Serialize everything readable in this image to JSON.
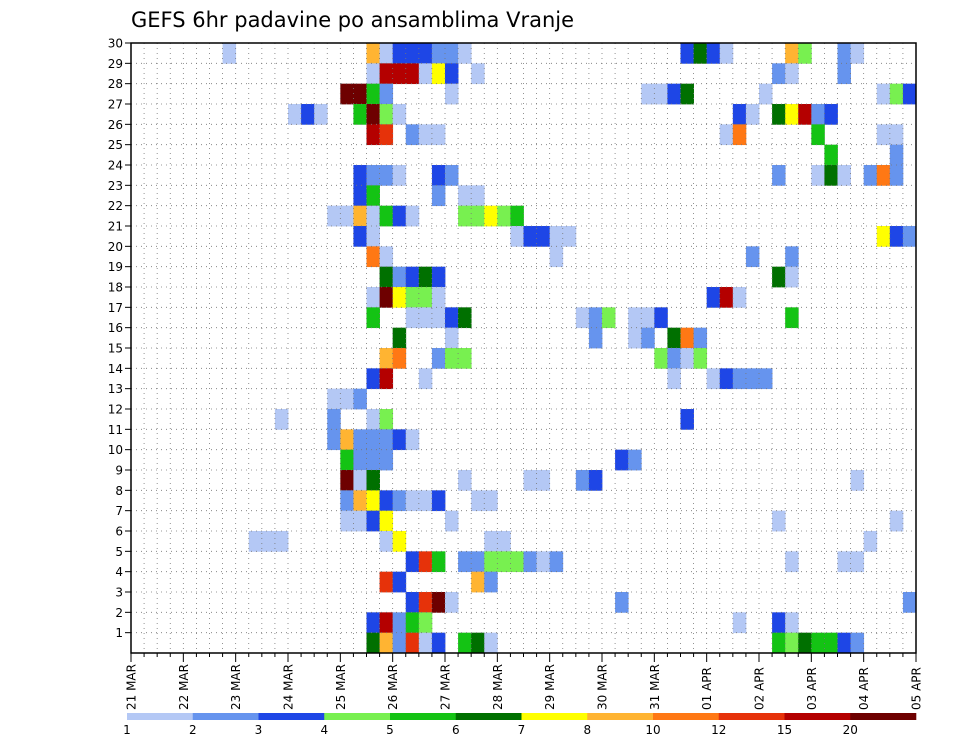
{
  "chart_data": {
    "type": "heatmap",
    "title": "GEFS 6hr padavine po ansamblima Vranje",
    "xlabel": "",
    "ylabel": "",
    "y_labels": [
      "1",
      "2",
      "3",
      "4",
      "5",
      "6",
      "7",
      "8",
      "9",
      "10",
      "11",
      "12",
      "13",
      "14",
      "15",
      "16",
      "17",
      "18",
      "19",
      "20",
      "21",
      "22",
      "23",
      "24",
      "25",
      "26",
      "27",
      "28",
      "29",
      "30"
    ],
    "x_labels": [
      "21 MAR",
      "22 MAR",
      "23 MAR",
      "24 MAR",
      "25 MAR",
      "26 MAR",
      "27 MAR",
      "28 MAR",
      "29 MAR",
      "30 MAR",
      "31 MAR",
      "01 APR",
      "02 APR",
      "03 APR",
      "04 APR",
      "05 APR"
    ],
    "ylim": [
      0,
      30
    ],
    "grid": true,
    "time_steps": 60,
    "legend": {
      "levels": [
        "1",
        "2",
        "3",
        "4",
        "5",
        "6",
        "7",
        "8",
        "10",
        "12",
        "15",
        "20"
      ],
      "colors": [
        "#b4c8f5",
        "#6694ee",
        "#1e46e6",
        "#78f050",
        "#14c314",
        "#007000",
        "#ffff00",
        "#ffb432",
        "#ff7814",
        "#e6320a",
        "#b40000",
        "#6e0000"
      ]
    },
    "cells": [
      [
        30,
        8,
        1
      ],
      [
        30,
        19,
        8
      ],
      [
        30,
        20,
        1
      ],
      [
        30,
        21,
        3
      ],
      [
        30,
        22,
        3
      ],
      [
        30,
        23,
        3
      ],
      [
        30,
        24,
        2
      ],
      [
        30,
        25,
        2
      ],
      [
        30,
        26,
        1
      ],
      [
        30,
        43,
        3
      ],
      [
        30,
        44,
        6
      ],
      [
        30,
        45,
        3
      ],
      [
        30,
        46,
        1
      ],
      [
        30,
        51,
        8
      ],
      [
        30,
        52,
        4
      ],
      [
        30,
        55,
        2
      ],
      [
        30,
        56,
        1
      ],
      [
        29,
        19,
        1
      ],
      [
        29,
        20,
        11
      ],
      [
        29,
        21,
        11
      ],
      [
        29,
        22,
        11
      ],
      [
        29,
        23,
        1
      ],
      [
        29,
        24,
        7
      ],
      [
        29,
        25,
        3
      ],
      [
        29,
        27,
        1
      ],
      [
        29,
        50,
        2
      ],
      [
        29,
        51,
        1
      ],
      [
        29,
        55,
        2
      ],
      [
        28,
        17,
        12
      ],
      [
        28,
        18,
        12
      ],
      [
        28,
        19,
        5
      ],
      [
        28,
        20,
        2
      ],
      [
        28,
        25,
        1
      ],
      [
        28,
        40,
        1
      ],
      [
        28,
        41,
        1
      ],
      [
        28,
        42,
        3
      ],
      [
        28,
        43,
        6
      ],
      [
        28,
        49,
        1
      ],
      [
        28,
        58,
        1
      ],
      [
        28,
        59,
        4
      ],
      [
        28,
        60,
        3
      ],
      [
        27,
        13,
        1
      ],
      [
        27,
        14,
        3
      ],
      [
        27,
        15,
        1
      ],
      [
        27,
        18,
        5
      ],
      [
        27,
        19,
        12
      ],
      [
        27,
        20,
        4
      ],
      [
        27,
        21,
        1
      ],
      [
        27,
        47,
        3
      ],
      [
        27,
        48,
        1
      ],
      [
        27,
        50,
        6
      ],
      [
        27,
        51,
        7
      ],
      [
        27,
        52,
        11
      ],
      [
        27,
        53,
        2
      ],
      [
        27,
        54,
        3
      ],
      [
        26,
        19,
        11
      ],
      [
        26,
        20,
        10
      ],
      [
        26,
        22,
        2
      ],
      [
        26,
        23,
        1
      ],
      [
        26,
        24,
        1
      ],
      [
        26,
        46,
        1
      ],
      [
        26,
        47,
        9
      ],
      [
        26,
        53,
        5
      ],
      [
        26,
        58,
        1
      ],
      [
        26,
        59,
        1
      ],
      [
        25,
        54,
        5
      ],
      [
        25,
        59,
        2
      ],
      [
        24,
        18,
        3
      ],
      [
        24,
        19,
        2
      ],
      [
        24,
        20,
        2
      ],
      [
        24,
        21,
        1
      ],
      [
        24,
        24,
        3
      ],
      [
        24,
        25,
        2
      ],
      [
        24,
        50,
        2
      ],
      [
        24,
        53,
        1
      ],
      [
        24,
        54,
        6
      ],
      [
        24,
        55,
        1
      ],
      [
        24,
        57,
        2
      ],
      [
        24,
        58,
        9
      ],
      [
        24,
        59,
        2
      ],
      [
        23,
        18,
        3
      ],
      [
        23,
        19,
        5
      ],
      [
        23,
        24,
        2
      ],
      [
        23,
        26,
        1
      ],
      [
        23,
        27,
        1
      ],
      [
        22,
        16,
        1
      ],
      [
        22,
        17,
        1
      ],
      [
        22,
        18,
        8
      ],
      [
        22,
        19,
        1
      ],
      [
        22,
        20,
        5
      ],
      [
        22,
        21,
        3
      ],
      [
        22,
        22,
        1
      ],
      [
        22,
        26,
        4
      ],
      [
        22,
        27,
        4
      ],
      [
        22,
        28,
        7
      ],
      [
        22,
        29,
        4
      ],
      [
        22,
        30,
        5
      ],
      [
        21,
        18,
        3
      ],
      [
        21,
        19,
        1
      ],
      [
        21,
        30,
        1
      ],
      [
        21,
        31,
        3
      ],
      [
        21,
        32,
        3
      ],
      [
        21,
        33,
        1
      ],
      [
        21,
        34,
        1
      ],
      [
        21,
        58,
        7
      ],
      [
        21,
        59,
        3
      ],
      [
        21,
        60,
        2
      ],
      [
        20,
        19,
        9
      ],
      [
        20,
        20,
        1
      ],
      [
        20,
        33,
        1
      ],
      [
        20,
        48,
        2
      ],
      [
        20,
        51,
        2
      ],
      [
        19,
        20,
        6
      ],
      [
        19,
        21,
        2
      ],
      [
        19,
        22,
        3
      ],
      [
        19,
        23,
        6
      ],
      [
        19,
        24,
        3
      ],
      [
        19,
        50,
        6
      ],
      [
        19,
        51,
        1
      ],
      [
        18,
        19,
        1
      ],
      [
        18,
        20,
        12
      ],
      [
        18,
        21,
        7
      ],
      [
        18,
        22,
        4
      ],
      [
        18,
        23,
        4
      ],
      [
        18,
        24,
        1
      ],
      [
        18,
        45,
        3
      ],
      [
        18,
        46,
        11
      ],
      [
        18,
        47,
        1
      ],
      [
        17,
        19,
        5
      ],
      [
        17,
        22,
        1
      ],
      [
        17,
        23,
        1
      ],
      [
        17,
        24,
        1
      ],
      [
        17,
        25,
        3
      ],
      [
        17,
        26,
        6
      ],
      [
        17,
        35,
        1
      ],
      [
        17,
        36,
        2
      ],
      [
        17,
        37,
        4
      ],
      [
        17,
        39,
        1
      ],
      [
        17,
        40,
        1
      ],
      [
        17,
        41,
        3
      ],
      [
        17,
        51,
        5
      ],
      [
        16,
        21,
        6
      ],
      [
        16,
        25,
        1
      ],
      [
        16,
        36,
        2
      ],
      [
        16,
        39,
        1
      ],
      [
        16,
        40,
        2
      ],
      [
        16,
        42,
        6
      ],
      [
        16,
        43,
        9
      ],
      [
        16,
        44,
        2
      ],
      [
        15,
        20,
        8
      ],
      [
        15,
        21,
        9
      ],
      [
        15,
        24,
        2
      ],
      [
        15,
        25,
        4
      ],
      [
        15,
        26,
        4
      ],
      [
        15,
        41,
        4
      ],
      [
        15,
        42,
        2
      ],
      [
        15,
        43,
        1
      ],
      [
        15,
        44,
        4
      ],
      [
        14,
        19,
        3
      ],
      [
        14,
        20,
        11
      ],
      [
        14,
        23,
        1
      ],
      [
        14,
        42,
        1
      ],
      [
        14,
        45,
        1
      ],
      [
        14,
        46,
        3
      ],
      [
        14,
        47,
        2
      ],
      [
        14,
        48,
        2
      ],
      [
        14,
        49,
        2
      ],
      [
        13,
        16,
        1
      ],
      [
        13,
        17,
        1
      ],
      [
        13,
        18,
        2
      ],
      [
        12,
        12,
        1
      ],
      [
        12,
        16,
        2
      ],
      [
        12,
        19,
        1
      ],
      [
        12,
        20,
        4
      ],
      [
        12,
        43,
        3
      ],
      [
        11,
        16,
        2
      ],
      [
        11,
        17,
        8
      ],
      [
        11,
        18,
        2
      ],
      [
        11,
        19,
        2
      ],
      [
        11,
        20,
        2
      ],
      [
        11,
        21,
        3
      ],
      [
        11,
        22,
        1
      ],
      [
        10,
        17,
        5
      ],
      [
        10,
        18,
        2
      ],
      [
        10,
        19,
        2
      ],
      [
        10,
        20,
        2
      ],
      [
        10,
        38,
        3
      ],
      [
        10,
        39,
        2
      ],
      [
        9,
        17,
        12
      ],
      [
        9,
        18,
        1
      ],
      [
        9,
        19,
        6
      ],
      [
        9,
        26,
        1
      ],
      [
        9,
        31,
        1
      ],
      [
        9,
        32,
        1
      ],
      [
        9,
        35,
        2
      ],
      [
        9,
        36,
        3
      ],
      [
        9,
        56,
        1
      ],
      [
        8,
        17,
        2
      ],
      [
        8,
        18,
        8
      ],
      [
        8,
        19,
        7
      ],
      [
        8,
        20,
        3
      ],
      [
        8,
        21,
        2
      ],
      [
        8,
        22,
        1
      ],
      [
        8,
        23,
        1
      ],
      [
        8,
        24,
        3
      ],
      [
        8,
        27,
        1
      ],
      [
        8,
        28,
        1
      ],
      [
        7,
        17,
        1
      ],
      [
        7,
        18,
        1
      ],
      [
        7,
        19,
        3
      ],
      [
        7,
        20,
        7
      ],
      [
        7,
        25,
        1
      ],
      [
        7,
        50,
        1
      ],
      [
        7,
        59,
        1
      ],
      [
        6,
        10,
        1
      ],
      [
        6,
        11,
        1
      ],
      [
        6,
        12,
        1
      ],
      [
        6,
        20,
        1
      ],
      [
        6,
        21,
        7
      ],
      [
        6,
        28,
        1
      ],
      [
        6,
        29,
        1
      ],
      [
        6,
        57,
        1
      ],
      [
        5,
        22,
        3
      ],
      [
        5,
        23,
        10
      ],
      [
        5,
        24,
        5
      ],
      [
        5,
        26,
        2
      ],
      [
        5,
        27,
        2
      ],
      [
        5,
        28,
        4
      ],
      [
        5,
        29,
        4
      ],
      [
        5,
        30,
        4
      ],
      [
        5,
        31,
        2
      ],
      [
        5,
        32,
        1
      ],
      [
        5,
        33,
        2
      ],
      [
        5,
        51,
        1
      ],
      [
        5,
        55,
        1
      ],
      [
        5,
        56,
        1
      ],
      [
        4,
        20,
        10
      ],
      [
        4,
        21,
        3
      ],
      [
        4,
        27,
        8
      ],
      [
        4,
        28,
        2
      ],
      [
        3,
        22,
        3
      ],
      [
        3,
        23,
        10
      ],
      [
        3,
        24,
        12
      ],
      [
        3,
        25,
        1
      ],
      [
        3,
        38,
        2
      ],
      [
        3,
        60,
        2
      ],
      [
        2,
        19,
        3
      ],
      [
        2,
        20,
        11
      ],
      [
        2,
        21,
        2
      ],
      [
        2,
        22,
        5
      ],
      [
        2,
        23,
        4
      ],
      [
        2,
        47,
        1
      ],
      [
        2,
        50,
        3
      ],
      [
        2,
        51,
        1
      ],
      [
        1,
        19,
        6
      ],
      [
        1,
        20,
        8
      ],
      [
        1,
        21,
        2
      ],
      [
        1,
        22,
        10
      ],
      [
        1,
        23,
        1
      ],
      [
        1,
        24,
        3
      ],
      [
        1,
        26,
        5
      ],
      [
        1,
        27,
        6
      ],
      [
        1,
        28,
        1
      ],
      [
        1,
        50,
        5
      ],
      [
        1,
        51,
        4
      ],
      [
        1,
        52,
        6
      ],
      [
        1,
        53,
        5
      ],
      [
        1,
        54,
        5
      ],
      [
        1,
        55,
        3
      ],
      [
        1,
        56,
        2
      ]
    ]
  }
}
